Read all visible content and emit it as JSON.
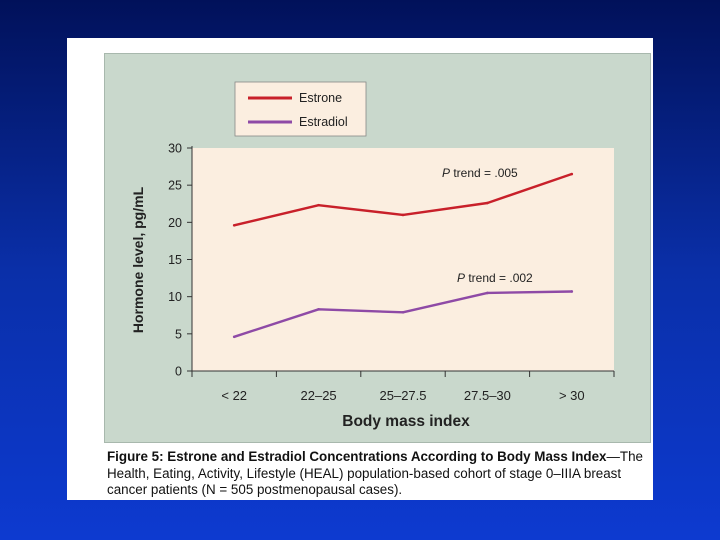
{
  "chart_data": {
    "type": "line",
    "categories": [
      "< 22",
      "22–25",
      "25–27.5",
      "27.5–30",
      "> 30"
    ],
    "series": [
      {
        "name": "Estrone",
        "values": [
          19.6,
          22.3,
          21.0,
          22.6,
          26.5
        ],
        "color": "#c8202a"
      },
      {
        "name": "Estradiol",
        "values": [
          4.6,
          8.3,
          7.9,
          10.5,
          10.7
        ],
        "color": "#8e4aa6"
      }
    ],
    "xlabel": "Body mass index",
    "ylabel": "Hormone level, pg/mL",
    "ylim": [
      0,
      30
    ],
    "yticks": [
      "0",
      "5",
      "10",
      "15",
      "20",
      "25",
      "30"
    ],
    "legend_position": "top-left",
    "annotations": [
      {
        "series": "Estrone",
        "label_italic": "P",
        "label_rest": " trend = .005"
      },
      {
        "series": "Estradiol",
        "label_italic": "P",
        "label_rest": " trend = .002"
      }
    ],
    "plot_background": "#fbeee0",
    "panel_background": "#c9d8cc"
  },
  "caption": {
    "bold": "Figure 5: Estrone and Estradiol Concentrations According to Body Mass Index",
    "rest": "—The Health, Eating, Activity, Lifestyle (HEAL) population-based cohort of stage 0–IIIA breast cancer patients (N = 505 postmenopausal cases)."
  }
}
